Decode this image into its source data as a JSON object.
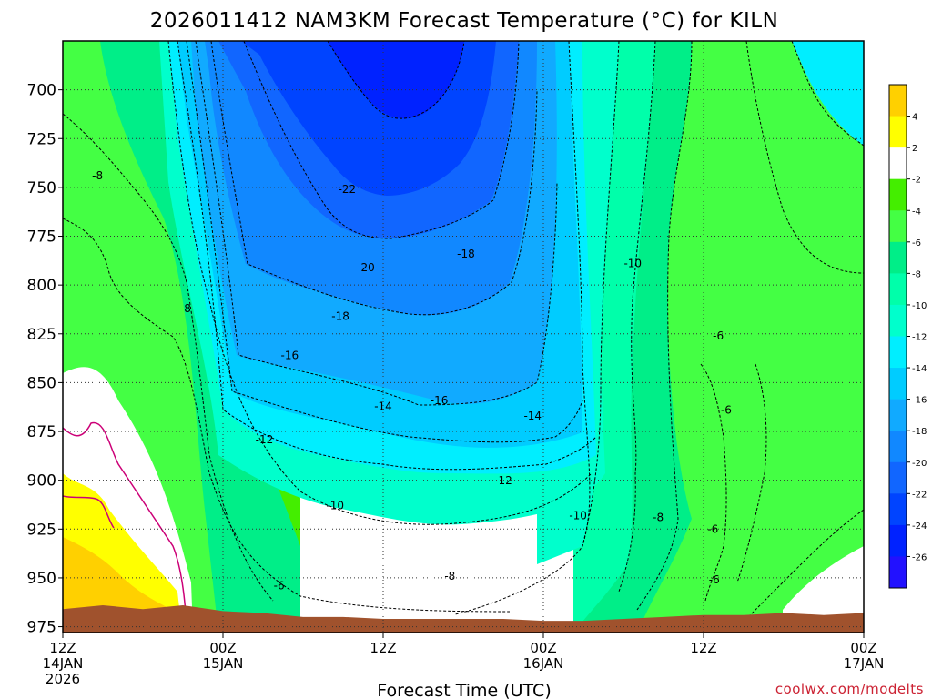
{
  "chart_data": {
    "type": "heatmap",
    "title": "2026011412 NAM3KM Forecast Temperature (°C) for KILN",
    "xlabel": "Forecast Time (UTC)",
    "ylabel": "",
    "credit": "coolwx.com/modelts",
    "y_axis": {
      "units": "hPa",
      "ticks": [
        700,
        725,
        750,
        775,
        800,
        825,
        850,
        875,
        900,
        925,
        950,
        975
      ],
      "ylim": [
        675,
        978
      ]
    },
    "x_axis": {
      "units": "hours since 2026-01-14 12Z",
      "xlim": [
        0,
        60
      ],
      "ticks": [
        {
          "hour": 0,
          "line1": "12Z",
          "line2": "14JAN",
          "line3": "2026"
        },
        {
          "hour": 12,
          "line1": "00Z",
          "line2": "15JAN",
          "line3": ""
        },
        {
          "hour": 24,
          "line1": "12Z",
          "line2": "",
          "line3": ""
        },
        {
          "hour": 36,
          "line1": "00Z",
          "line2": "16JAN",
          "line3": ""
        },
        {
          "hour": 48,
          "line1": "12Z",
          "line2": "",
          "line3": ""
        },
        {
          "hour": 60,
          "line1": "00Z",
          "line2": "17JAN",
          "line3": ""
        }
      ]
    },
    "colorbar": {
      "labels": [
        "4",
        "2",
        "-2",
        "-4",
        "-6",
        "-8",
        "-10",
        "-12",
        "-14",
        "-16",
        "-18",
        "-20",
        "-22",
        "-24",
        "-26"
      ],
      "bins": [
        {
          "min": 4,
          "max": 6,
          "color": "#ffd000"
        },
        {
          "min": 2,
          "max": 4,
          "color": "#ffff00"
        },
        {
          "min": -2,
          "max": 2,
          "color": "#ffffff"
        },
        {
          "min": -4,
          "max": -2,
          "color": "#44ee00"
        },
        {
          "min": -6,
          "max": -4,
          "color": "#44ff44"
        },
        {
          "min": -8,
          "max": -6,
          "color": "#00ee88"
        },
        {
          "min": -10,
          "max": -8,
          "color": "#00ffaa"
        },
        {
          "min": -12,
          "max": -10,
          "color": "#00ffcc"
        },
        {
          "min": -14,
          "max": -12,
          "color": "#00eeff"
        },
        {
          "min": -16,
          "max": -14,
          "color": "#00ccff"
        },
        {
          "min": -18,
          "max": -16,
          "color": "#11aaff"
        },
        {
          "min": -20,
          "max": -18,
          "color": "#1188ff"
        },
        {
          "min": -22,
          "max": -20,
          "color": "#1166ff"
        },
        {
          "min": -24,
          "max": -22,
          "color": "#0044ff"
        },
        {
          "min": -26,
          "max": -24,
          "color": "#0022ff"
        },
        {
          "min": -28,
          "max": -26,
          "color": "#2211ff"
        }
      ]
    },
    "contour_labels": [
      {
        "text": "-8",
        "hour": 2.6,
        "p": 745
      },
      {
        "text": "-8",
        "hour": 9.2,
        "p": 813
      },
      {
        "text": "-6",
        "hour": 16.2,
        "p": 955
      },
      {
        "text": "-22",
        "hour": 21.3,
        "p": 752
      },
      {
        "text": "-20",
        "hour": 22.7,
        "p": 792
      },
      {
        "text": "-18",
        "hour": 20.8,
        "p": 817
      },
      {
        "text": "-16",
        "hour": 17.0,
        "p": 837
      },
      {
        "text": "-18",
        "hour": 30.2,
        "p": 785
      },
      {
        "text": "-16",
        "hour": 28.2,
        "p": 860
      },
      {
        "text": "-14",
        "hour": 24.0,
        "p": 863
      },
      {
        "text": "-14",
        "hour": 35.2,
        "p": 868
      },
      {
        "text": "-12",
        "hour": 15.1,
        "p": 880
      },
      {
        "text": "-12",
        "hour": 33.0,
        "p": 901
      },
      {
        "text": "-10",
        "hour": 20.4,
        "p": 914
      },
      {
        "text": "-10",
        "hour": 38.6,
        "p": 919
      },
      {
        "text": "-10",
        "hour": 42.7,
        "p": 790
      },
      {
        "text": "-8",
        "hour": 29.0,
        "p": 950
      },
      {
        "text": "-8",
        "hour": 44.6,
        "p": 920
      },
      {
        "text": "-6",
        "hour": 49.1,
        "p": 827
      },
      {
        "text": "-6",
        "hour": 49.7,
        "p": 865
      },
      {
        "text": "-6",
        "hour": 48.7,
        "p": 926
      },
      {
        "text": "-6",
        "hour": 48.8,
        "p": 952
      }
    ],
    "surface_pressure": [
      [
        0,
        966
      ],
      [
        3,
        964
      ],
      [
        6,
        966
      ],
      [
        9,
        964
      ],
      [
        12,
        967
      ],
      [
        15,
        968
      ],
      [
        18,
        970
      ],
      [
        21,
        970
      ],
      [
        24,
        971
      ],
      [
        27,
        971
      ],
      [
        30,
        971
      ],
      [
        33,
        971
      ],
      [
        36,
        972
      ],
      [
        39,
        972
      ],
      [
        42,
        971
      ],
      [
        45,
        970
      ],
      [
        48,
        969
      ],
      [
        51,
        969
      ],
      [
        54,
        968
      ],
      [
        57,
        969
      ],
      [
        60,
        968
      ]
    ],
    "colors": {
      "ground": "#a0522d",
      "freezing_contour": "#cc0077"
    }
  }
}
